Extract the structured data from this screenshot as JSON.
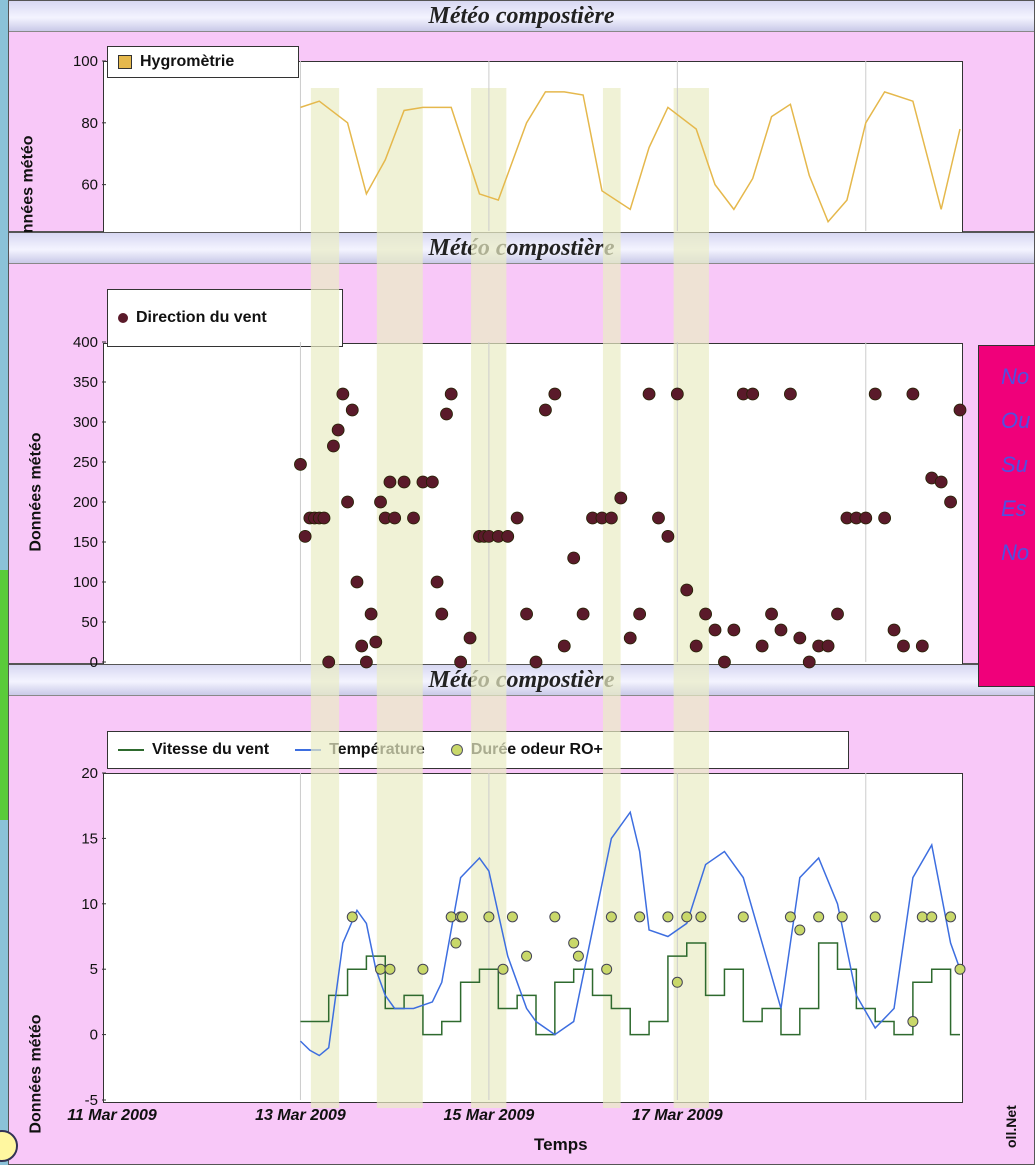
{
  "colors": {
    "panel_bg": "#f8c8f8",
    "highlight": "#e9ecc4",
    "hygro": "#e5b84c",
    "wind_dir": "#5a1a2a",
    "wind_speed": "#2e6a2e",
    "temp": "#3d6ee0",
    "odor": "#c9d86a",
    "dir_box": "#f0007a"
  },
  "chart_data": [
    {
      "type": "line",
      "title": "Météo compostière",
      "ylabel": "Données météo",
      "ylim": [
        45,
        100
      ],
      "yticks": [
        "100",
        "80",
        "60"
      ],
      "legend": [
        "Hygromètrie"
      ],
      "series": [
        {
          "name": "Hygromètrie",
          "x_days": [
            1.0,
            1.2,
            1.5,
            1.7,
            1.9,
            2.1,
            2.3,
            2.6,
            2.9,
            3.1,
            3.4,
            3.6,
            3.8,
            4.0,
            4.2,
            4.5,
            4.7,
            4.9,
            5.2,
            5.4,
            5.6,
            5.8,
            6.0,
            6.2,
            6.4,
            6.6,
            6.8,
            7.0,
            7.2,
            7.5,
            7.8,
            8.0
          ],
          "values": [
            85,
            87,
            80,
            57,
            68,
            84,
            85,
            85,
            57,
            55,
            80,
            90,
            90,
            89,
            58,
            52,
            72,
            85,
            78,
            60,
            52,
            62,
            82,
            86,
            63,
            48,
            55,
            80,
            90,
            87,
            52,
            78
          ]
        }
      ]
    },
    {
      "type": "scatter",
      "title": "Météo compostière",
      "ylabel": "Données météo",
      "ylim": [
        0,
        400
      ],
      "yticks": [
        "400",
        "350",
        "300",
        "250",
        "200",
        "150",
        "100",
        "50",
        "0"
      ],
      "legend": [
        "Direction du vent"
      ],
      "series": [
        {
          "name": "Direction du vent",
          "x_days": [
            1.0,
            1.05,
            1.1,
            1.15,
            1.2,
            1.25,
            1.3,
            1.35,
            1.4,
            1.45,
            1.5,
            1.55,
            1.6,
            1.65,
            1.7,
            1.75,
            1.8,
            1.85,
            1.9,
            1.95,
            2.0,
            2.1,
            2.2,
            2.3,
            2.4,
            2.45,
            2.5,
            2.55,
            2.6,
            2.7,
            2.8,
            2.9,
            2.95,
            3.0,
            3.1,
            3.2,
            3.3,
            3.4,
            3.5,
            3.6,
            3.7,
            3.8,
            3.9,
            4.0,
            4.1,
            4.2,
            4.3,
            4.4,
            4.5,
            4.6,
            4.7,
            4.8,
            4.9,
            5.0,
            5.1,
            5.2,
            5.3,
            5.4,
            5.5,
            5.6,
            5.7,
            5.8,
            5.9,
            6.0,
            6.1,
            6.2,
            6.3,
            6.4,
            6.5,
            6.6,
            6.7,
            6.8,
            6.9,
            7.0,
            7.1,
            7.2,
            7.3,
            7.4,
            7.5,
            7.6,
            7.7,
            7.8,
            7.9,
            8.0
          ],
          "values": [
            247,
            157,
            180,
            180,
            180,
            180,
            0,
            270,
            290,
            335,
            200,
            315,
            100,
            20,
            0,
            60,
            25,
            200,
            180,
            225,
            180,
            225,
            180,
            225,
            225,
            100,
            60,
            310,
            335,
            0,
            30,
            157,
            157,
            157,
            157,
            157,
            180,
            60,
            0,
            315,
            335,
            20,
            130,
            60,
            180,
            180,
            180,
            205,
            30,
            60,
            335,
            180,
            157,
            335,
            90,
            20,
            60,
            40,
            0,
            40,
            335,
            335,
            20,
            60,
            40,
            335,
            30,
            0,
            20,
            20,
            60,
            180,
            180,
            180,
            335,
            180,
            40,
            20,
            335,
            20,
            230,
            225,
            200,
            315
          ]
        }
      ]
    },
    {
      "type": "line",
      "title": "Météo compostière",
      "xlabel": "Temps",
      "ylabel": "Données météo",
      "ylim": [
        -5,
        20
      ],
      "yticks": [
        "20",
        "15",
        "10",
        "5",
        "0",
        "-5"
      ],
      "xticks": [
        "11 Mar 2009",
        "13 Mar 2009",
        "15 Mar 2009",
        "17 Mar 2009"
      ],
      "legend": [
        "Vitesse du vent",
        "Température",
        "Durée odeur RO+"
      ],
      "series": [
        {
          "name": "Température",
          "x_days": [
            1.0,
            1.1,
            1.2,
            1.3,
            1.45,
            1.6,
            1.7,
            1.8,
            1.9,
            2.0,
            2.2,
            2.4,
            2.5,
            2.7,
            2.9,
            3.0,
            3.2,
            3.4,
            3.5,
            3.7,
            3.9,
            4.1,
            4.3,
            4.5,
            4.6,
            4.7,
            4.9,
            5.1,
            5.3,
            5.5,
            5.7,
            5.9,
            6.1,
            6.3,
            6.5,
            6.7,
            6.9,
            7.1,
            7.3,
            7.5,
            7.7,
            7.9,
            8.0
          ],
          "values": [
            -0.5,
            -1.2,
            -1.6,
            -1.0,
            7.0,
            9.5,
            8.5,
            5.0,
            3.0,
            2.0,
            2.0,
            2.5,
            4.0,
            12.0,
            13.5,
            12.5,
            6.0,
            2.0,
            1.0,
            0.0,
            1.0,
            8.0,
            15.0,
            17.0,
            14.0,
            8.0,
            7.5,
            8.5,
            13.0,
            14.0,
            12.0,
            7.0,
            2.0,
            12.0,
            13.5,
            10.0,
            3.0,
            0.5,
            2.0,
            12.0,
            14.5,
            7.0,
            5.0
          ]
        },
        {
          "name": "Vitesse du vent",
          "x_days": [
            1.0,
            1.3,
            1.5,
            1.7,
            1.9,
            2.1,
            2.3,
            2.5,
            2.7,
            2.9,
            3.1,
            3.3,
            3.5,
            3.7,
            3.9,
            4.1,
            4.3,
            4.5,
            4.7,
            4.9,
            5.1,
            5.3,
            5.5,
            5.7,
            5.9,
            6.1,
            6.3,
            6.5,
            6.7,
            6.9,
            7.1,
            7.3,
            7.5,
            7.7,
            7.9,
            8.0
          ],
          "values": [
            1,
            3,
            5,
            6,
            2,
            3,
            0,
            1,
            4,
            5,
            2,
            3,
            0,
            4,
            5,
            3,
            2,
            0,
            1,
            6,
            7,
            3,
            5,
            1,
            2,
            0,
            2,
            7,
            5,
            2,
            1,
            0,
            4,
            5,
            0,
            0
          ]
        },
        {
          "name": "Durée odeur RO+",
          "x_days": [
            1.55,
            1.85,
            1.95,
            2.3,
            2.6,
            2.65,
            2.7,
            2.72,
            3.0,
            3.15,
            3.25,
            3.4,
            3.7,
            3.9,
            3.95,
            4.25,
            4.3,
            4.6,
            4.9,
            5.0,
            5.1,
            5.25,
            5.7,
            6.2,
            6.3,
            6.5,
            6.75,
            7.1,
            7.5,
            7.6,
            7.7,
            7.9,
            8.0
          ],
          "values": [
            9,
            5,
            5,
            5,
            9,
            7,
            9,
            9,
            9,
            5,
            9,
            6,
            9,
            7,
            6,
            5,
            9,
            9,
            9,
            4,
            9,
            9,
            9,
            9,
            8,
            9,
            9,
            9,
            1,
            9,
            9,
            9,
            5
          ]
        }
      ]
    }
  ],
  "wind_directions": [
    "No",
    "Ou",
    "Su",
    "Es",
    "No"
  ],
  "credit": "oll.Net"
}
